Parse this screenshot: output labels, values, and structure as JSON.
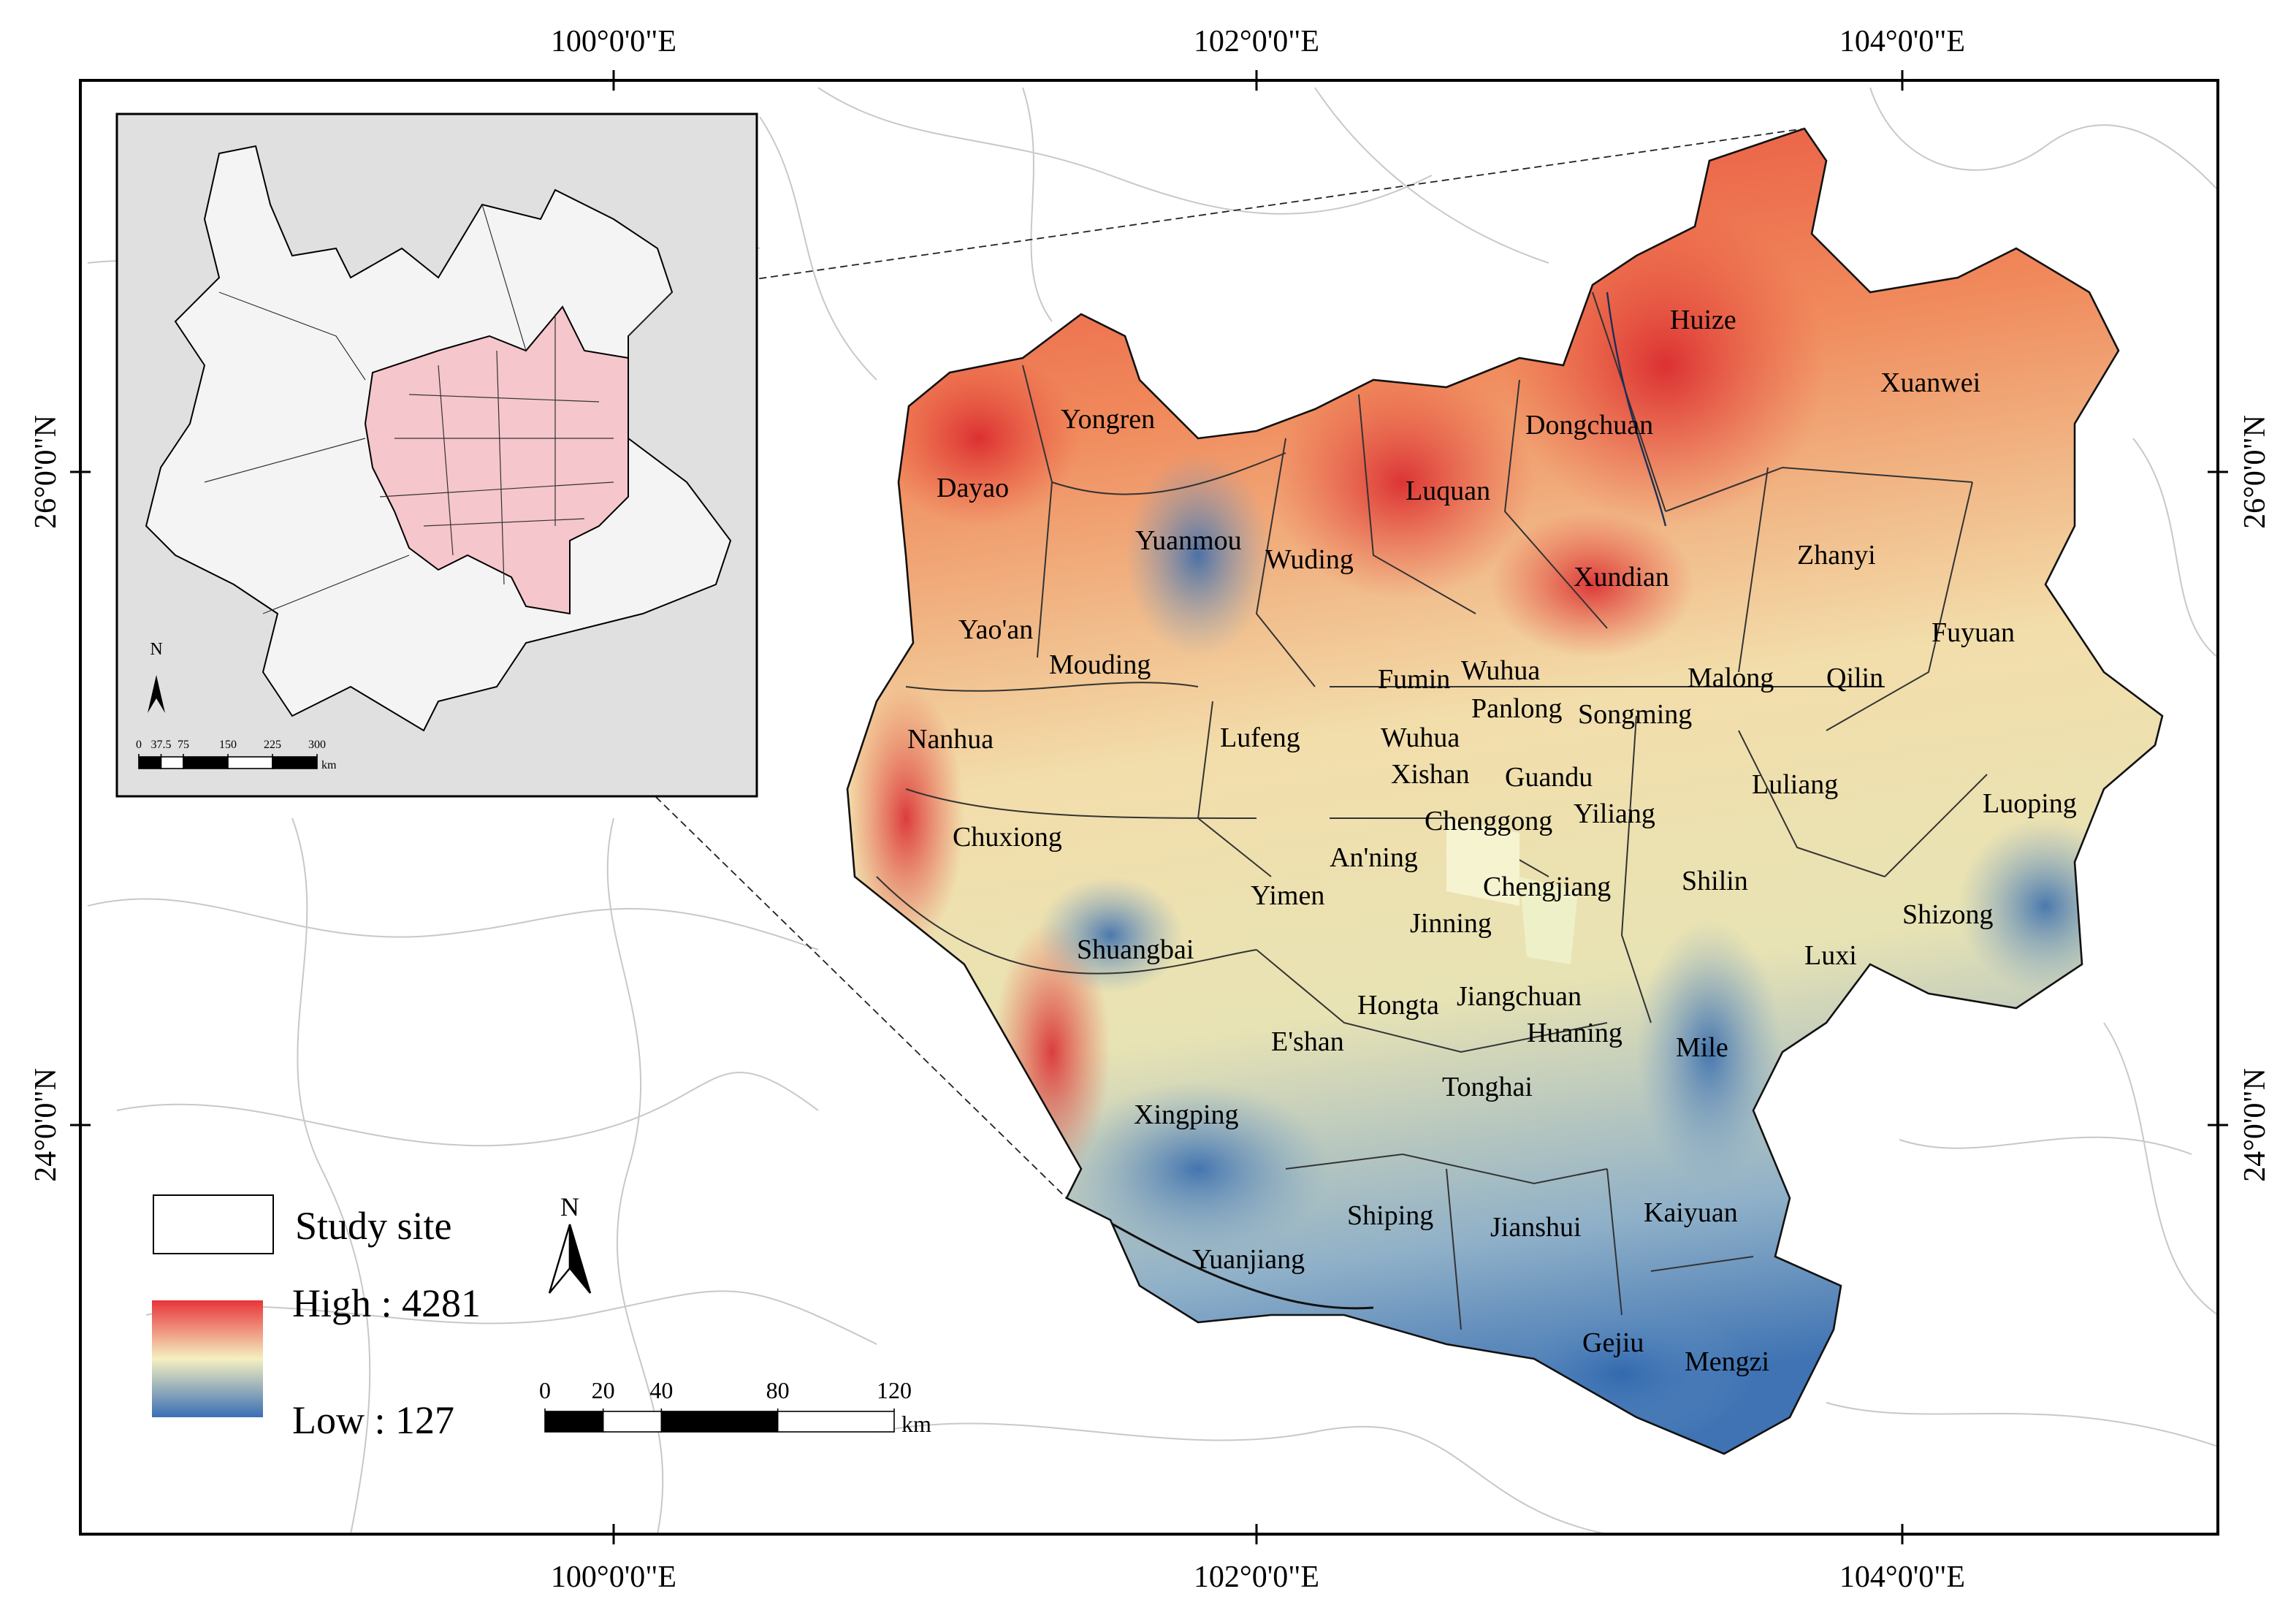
{
  "coordinates": {
    "top": [
      "100°0'0\"E",
      "102°0'0\"E",
      "104°0'0\"E"
    ],
    "bottom": [
      "100°0'0\"E",
      "102°0'0\"E",
      "104°0'0\"E"
    ],
    "left": [
      "26°0'0\"N",
      "24°0'0\"N"
    ],
    "right": [
      "26°0'0\"N",
      "24°0'0\"N"
    ]
  },
  "counties": [
    "Huize",
    "Xuanwei",
    "Yongren",
    "Dongchuan",
    "Dayao",
    "Luquan",
    "Yuanmou",
    "Wuding",
    "Zhanyi",
    "Xundian",
    "Yao'an",
    "Fuyuan",
    "Mouding",
    "Fumin",
    "Wuhua",
    "Malong",
    "Qilin",
    "Panlong",
    "Songming",
    "Nanhua",
    "Lufeng",
    "Wuhua",
    "Xishan",
    "Guandu",
    "Luliang",
    "Luoping",
    "Chenggong",
    "Yiliang",
    "Chuxiong",
    "An'ning",
    "Chengjiang",
    "Shilin",
    "Yimen",
    "Shizong",
    "Jinning",
    "Luxi",
    "Shuangbai",
    "Jiangchuan",
    "Hongta",
    "E'shan",
    "Huaning",
    "Mile",
    "Tonghai",
    "Xingping",
    "Shiping",
    "Jianshui",
    "Kaiyuan",
    "Yuanjiang",
    "Gejiu",
    "Mengzi"
  ],
  "legend": {
    "study_site": "Study site",
    "high": "High : 4281",
    "low": "Low : 127"
  },
  "north": "N",
  "scale_bar": {
    "ticks": [
      0,
      20,
      40,
      80,
      120
    ],
    "unit": "km"
  },
  "inset": {
    "north": "N",
    "scale_ticks": [
      0,
      37.5,
      75,
      150,
      225,
      300
    ],
    "unit": "km"
  }
}
